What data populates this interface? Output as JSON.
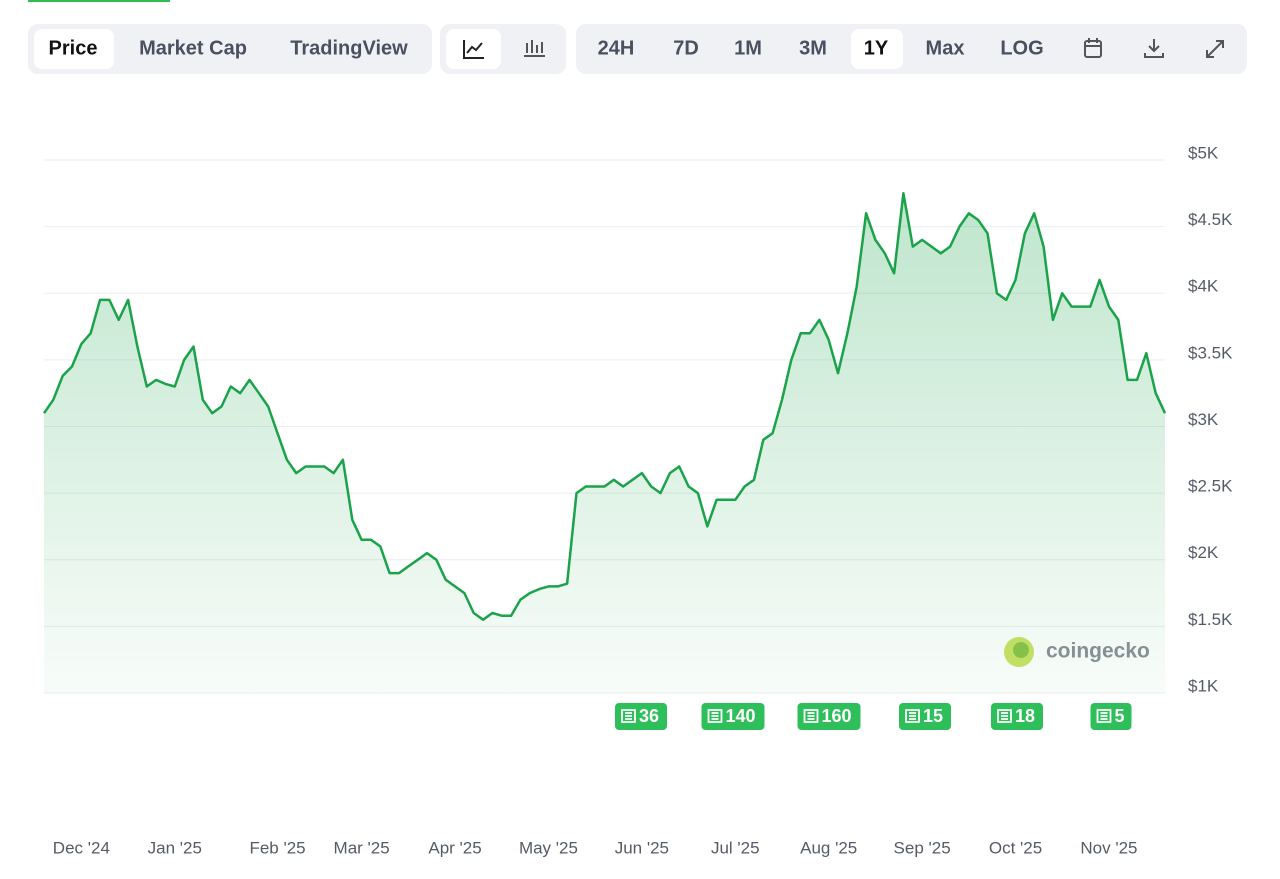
{
  "toolbar": {
    "views": [
      "Price",
      "Market Cap",
      "TradingView"
    ],
    "ranges": [
      "24H",
      "7D",
      "1M",
      "3M",
      "1Y",
      "Max",
      "LOG"
    ]
  },
  "watermark": "coingecko",
  "chart_data": {
    "type": "line",
    "color": "#1aa34a",
    "grid": true,
    "categories": [
      null,
      null,
      null,
      null,
      "Dec '24",
      null,
      null,
      null,
      null,
      null,
      null,
      null,
      null,
      null,
      "Jan '25",
      null,
      null,
      null,
      null,
      null,
      null,
      null,
      null,
      null,
      null,
      "Feb '25",
      null,
      null,
      null,
      null,
      null,
      null,
      null,
      null,
      "Mar '25",
      null,
      null,
      null,
      null,
      null,
      null,
      null,
      null,
      null,
      "Apr '25",
      null,
      null,
      null,
      null,
      null,
      null,
      null,
      null,
      null,
      "May '25",
      null,
      null,
      null,
      null,
      null,
      null,
      null,
      null,
      null,
      "Jun '25",
      null,
      null,
      null,
      null,
      null,
      null,
      null,
      null,
      null,
      "Jul '25",
      null,
      null,
      null,
      null,
      null,
      null,
      null,
      null,
      null,
      "Aug '25",
      null,
      null,
      null,
      null,
      null,
      null,
      null,
      null,
      null,
      "Sep '25",
      null,
      null,
      null,
      null,
      null,
      null,
      null,
      null,
      null,
      "Oct '25",
      null,
      null,
      null,
      null,
      null,
      null,
      null,
      null,
      null,
      "Nov '25",
      null,
      null,
      null,
      null,
      null,
      null
    ],
    "values": [
      3100,
      3200,
      3380,
      3450,
      3620,
      3700,
      3950,
      3950,
      3800,
      3950,
      3600,
      3300,
      3350,
      3320,
      3300,
      3500,
      3600,
      3200,
      3100,
      3150,
      3300,
      3250,
      3350,
      3250,
      3150,
      2950,
      2750,
      2650,
      2700,
      2700,
      2700,
      2650,
      2750,
      2300,
      2150,
      2150,
      2100,
      1900,
      1900,
      1950,
      2000,
      2050,
      2000,
      1850,
      1800,
      1750,
      1600,
      1550,
      1600,
      1580,
      1580,
      1700,
      1750,
      1780,
      1800,
      1800,
      1820,
      2500,
      2550,
      2550,
      2550,
      2600,
      2550,
      2600,
      2650,
      2550,
      2500,
      2650,
      2700,
      2550,
      2500,
      2250,
      2450,
      2450,
      2450,
      2550,
      2600,
      2900,
      2950,
      3200,
      3500,
      3700,
      3700,
      3800,
      3650,
      3400,
      3700,
      4050,
      4600,
      4400,
      4300,
      4150,
      4750,
      4350,
      4400,
      4350,
      4300,
      4350,
      4500,
      4600,
      4550,
      4450,
      4000,
      3950,
      4100,
      4450,
      4600,
      4350,
      3800,
      4000,
      3900,
      3900,
      3900,
      4100,
      3900,
      3800,
      3350,
      3350,
      3550,
      3250,
      3100
    ],
    "ylim": [
      1000,
      5000
    ],
    "yticks": [
      {
        "value": 1000,
        "label": "$1K"
      },
      {
        "value": 1500,
        "label": "$1.5K"
      },
      {
        "value": 2000,
        "label": "$2K"
      },
      {
        "value": 2500,
        "label": "$2.5K"
      },
      {
        "value": 3000,
        "label": "$3K"
      },
      {
        "value": 3500,
        "label": "$3.5K"
      },
      {
        "value": 4000,
        "label": "$4K"
      },
      {
        "value": 4500,
        "label": "$4.5K"
      },
      {
        "value": 5000,
        "label": "$5K"
      }
    ],
    "annotations": [
      36,
      140,
      160,
      15,
      18,
      5
    ]
  }
}
